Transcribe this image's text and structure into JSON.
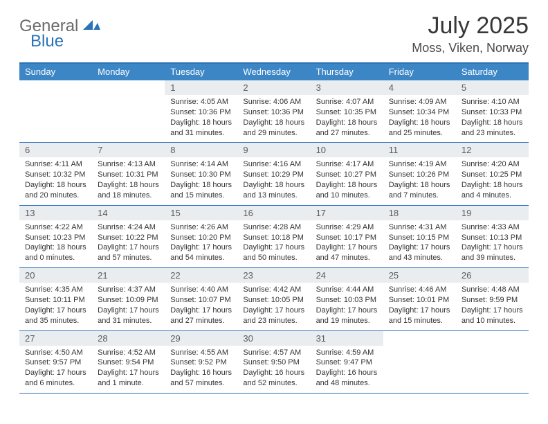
{
  "brand": {
    "word1": "General",
    "word2": "Blue"
  },
  "colors": {
    "accent": "#2a73b8",
    "header_bg": "#3d86c6",
    "header_text": "#ffffff",
    "daynum_bg": "#e9edf0",
    "daynum_text": "#5b5b5b",
    "body_text": "#333333",
    "logo_gray": "#6a6a6a"
  },
  "title": "July 2025",
  "subtitle": "Moss, Viken, Norway",
  "daysOfWeek": [
    "Sunday",
    "Monday",
    "Tuesday",
    "Wednesday",
    "Thursday",
    "Friday",
    "Saturday"
  ],
  "weeks": [
    [
      null,
      null,
      {
        "n": "1",
        "sr": "4:05 AM",
        "ss": "10:36 PM",
        "dl": "18 hours and 31 minutes."
      },
      {
        "n": "2",
        "sr": "4:06 AM",
        "ss": "10:36 PM",
        "dl": "18 hours and 29 minutes."
      },
      {
        "n": "3",
        "sr": "4:07 AM",
        "ss": "10:35 PM",
        "dl": "18 hours and 27 minutes."
      },
      {
        "n": "4",
        "sr": "4:09 AM",
        "ss": "10:34 PM",
        "dl": "18 hours and 25 minutes."
      },
      {
        "n": "5",
        "sr": "4:10 AM",
        "ss": "10:33 PM",
        "dl": "18 hours and 23 minutes."
      }
    ],
    [
      {
        "n": "6",
        "sr": "4:11 AM",
        "ss": "10:32 PM",
        "dl": "18 hours and 20 minutes."
      },
      {
        "n": "7",
        "sr": "4:13 AM",
        "ss": "10:31 PM",
        "dl": "18 hours and 18 minutes."
      },
      {
        "n": "8",
        "sr": "4:14 AM",
        "ss": "10:30 PM",
        "dl": "18 hours and 15 minutes."
      },
      {
        "n": "9",
        "sr": "4:16 AM",
        "ss": "10:29 PM",
        "dl": "18 hours and 13 minutes."
      },
      {
        "n": "10",
        "sr": "4:17 AM",
        "ss": "10:27 PM",
        "dl": "18 hours and 10 minutes."
      },
      {
        "n": "11",
        "sr": "4:19 AM",
        "ss": "10:26 PM",
        "dl": "18 hours and 7 minutes."
      },
      {
        "n": "12",
        "sr": "4:20 AM",
        "ss": "10:25 PM",
        "dl": "18 hours and 4 minutes."
      }
    ],
    [
      {
        "n": "13",
        "sr": "4:22 AM",
        "ss": "10:23 PM",
        "dl": "18 hours and 0 minutes."
      },
      {
        "n": "14",
        "sr": "4:24 AM",
        "ss": "10:22 PM",
        "dl": "17 hours and 57 minutes."
      },
      {
        "n": "15",
        "sr": "4:26 AM",
        "ss": "10:20 PM",
        "dl": "17 hours and 54 minutes."
      },
      {
        "n": "16",
        "sr": "4:28 AM",
        "ss": "10:18 PM",
        "dl": "17 hours and 50 minutes."
      },
      {
        "n": "17",
        "sr": "4:29 AM",
        "ss": "10:17 PM",
        "dl": "17 hours and 47 minutes."
      },
      {
        "n": "18",
        "sr": "4:31 AM",
        "ss": "10:15 PM",
        "dl": "17 hours and 43 minutes."
      },
      {
        "n": "19",
        "sr": "4:33 AM",
        "ss": "10:13 PM",
        "dl": "17 hours and 39 minutes."
      }
    ],
    [
      {
        "n": "20",
        "sr": "4:35 AM",
        "ss": "10:11 PM",
        "dl": "17 hours and 35 minutes."
      },
      {
        "n": "21",
        "sr": "4:37 AM",
        "ss": "10:09 PM",
        "dl": "17 hours and 31 minutes."
      },
      {
        "n": "22",
        "sr": "4:40 AM",
        "ss": "10:07 PM",
        "dl": "17 hours and 27 minutes."
      },
      {
        "n": "23",
        "sr": "4:42 AM",
        "ss": "10:05 PM",
        "dl": "17 hours and 23 minutes."
      },
      {
        "n": "24",
        "sr": "4:44 AM",
        "ss": "10:03 PM",
        "dl": "17 hours and 19 minutes."
      },
      {
        "n": "25",
        "sr": "4:46 AM",
        "ss": "10:01 PM",
        "dl": "17 hours and 15 minutes."
      },
      {
        "n": "26",
        "sr": "4:48 AM",
        "ss": "9:59 PM",
        "dl": "17 hours and 10 minutes."
      }
    ],
    [
      {
        "n": "27",
        "sr": "4:50 AM",
        "ss": "9:57 PM",
        "dl": "17 hours and 6 minutes."
      },
      {
        "n": "28",
        "sr": "4:52 AM",
        "ss": "9:54 PM",
        "dl": "17 hours and 1 minute."
      },
      {
        "n": "29",
        "sr": "4:55 AM",
        "ss": "9:52 PM",
        "dl": "16 hours and 57 minutes."
      },
      {
        "n": "30",
        "sr": "4:57 AM",
        "ss": "9:50 PM",
        "dl": "16 hours and 52 minutes."
      },
      {
        "n": "31",
        "sr": "4:59 AM",
        "ss": "9:47 PM",
        "dl": "16 hours and 48 minutes."
      },
      null,
      null
    ]
  ],
  "labels": {
    "sunrise": "Sunrise: ",
    "sunset": "Sunset: ",
    "daylight": "Daylight: "
  }
}
